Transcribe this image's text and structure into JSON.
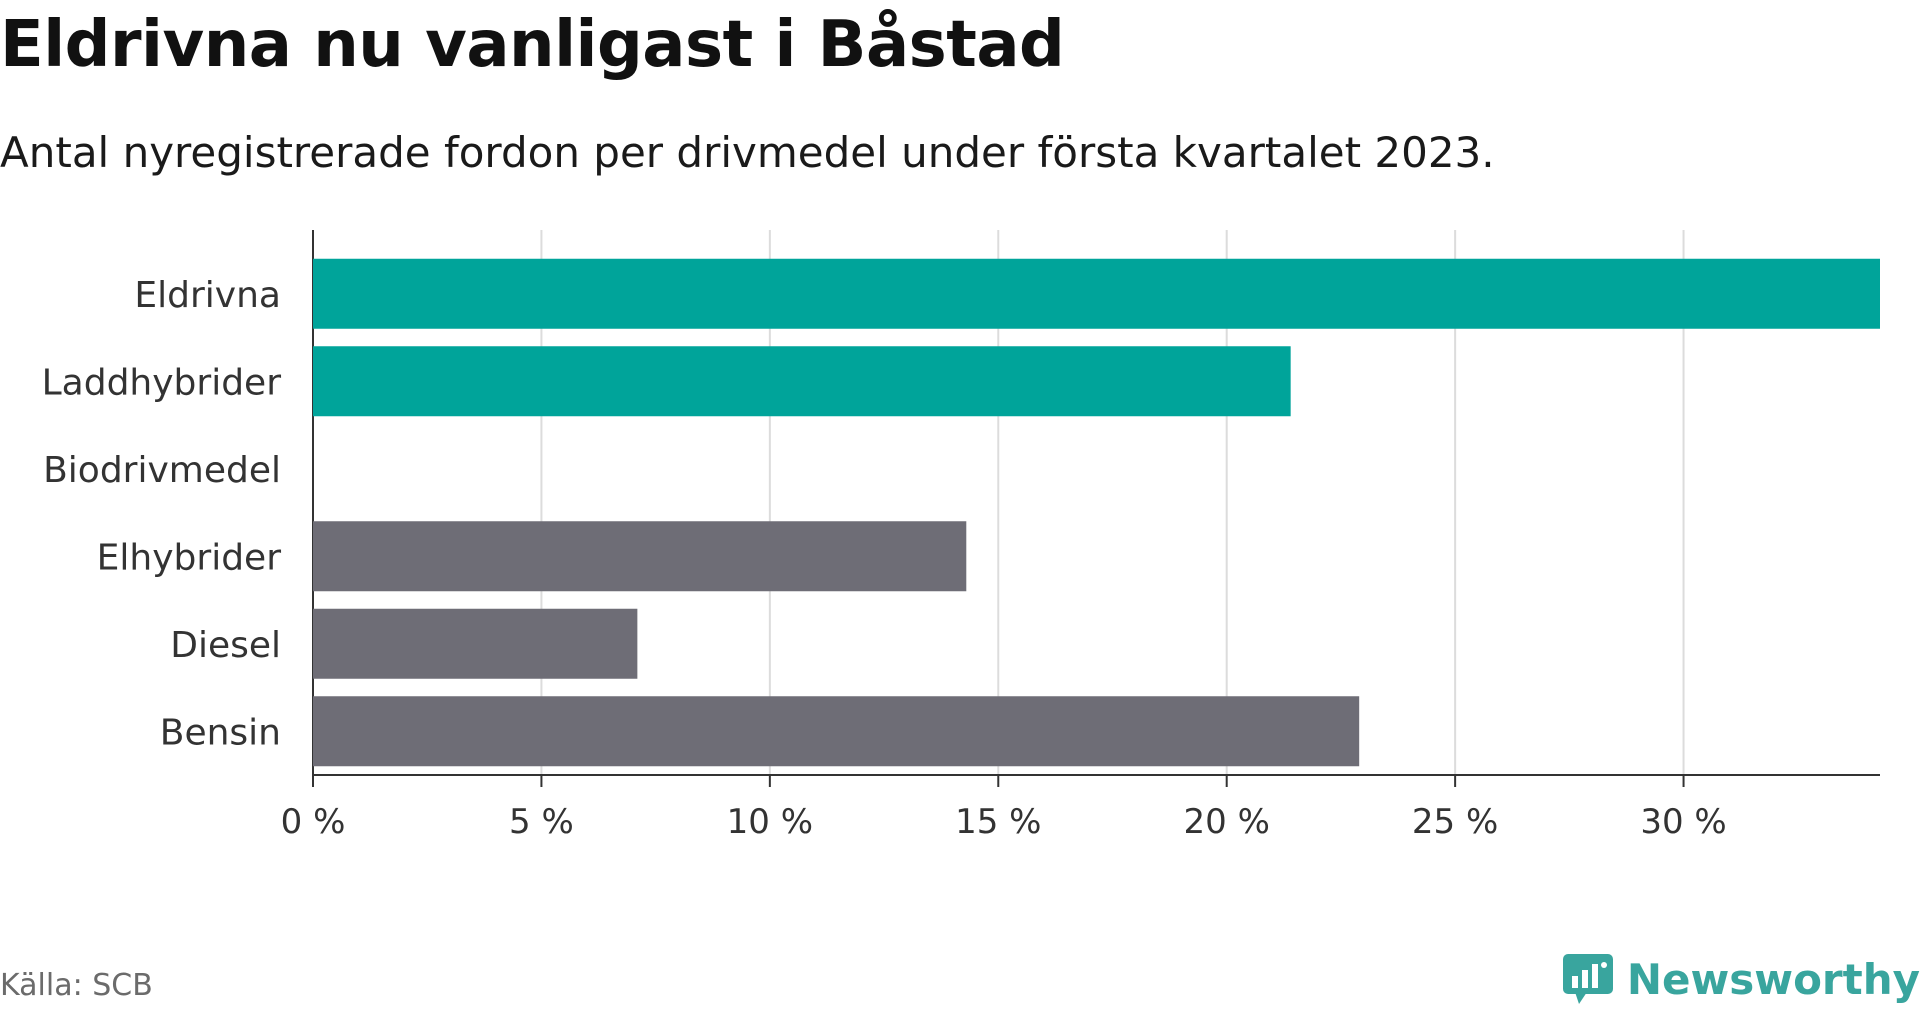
{
  "title": "Eldrivna nu vanligast i Båstad",
  "subtitle": "Antal nyregistrerade fordon per drivmedel under första kvartalet 2023.",
  "source": "Källa: SCB",
  "brand": {
    "name": "Newsworthy",
    "icon": "newsworthy-logo-icon"
  },
  "colors": {
    "highlight": "#00a49a",
    "other": "#6e6d76",
    "grid": "#dcdcdc",
    "axis": "#333333",
    "brand": "#39a59e"
  },
  "chart_data": {
    "type": "bar",
    "orientation": "horizontal",
    "categories": [
      "Eldrivna",
      "Laddhybrider",
      "Biodrivmedel",
      "Elhybrider",
      "Diesel",
      "Bensin"
    ],
    "values": [
      34.3,
      21.4,
      0,
      14.3,
      7.1,
      22.9
    ],
    "highlighted": [
      true,
      true,
      false,
      false,
      false,
      false
    ],
    "unit": "%",
    "xlim": [
      0,
      34.3
    ],
    "xticks": [
      0,
      5,
      10,
      15,
      20,
      25,
      30
    ],
    "xtick_labels": [
      "0 %",
      "5 %",
      "10 %",
      "15 %",
      "20 %",
      "25 %",
      "30 %"
    ],
    "grid": "vertical",
    "legend": "none"
  }
}
